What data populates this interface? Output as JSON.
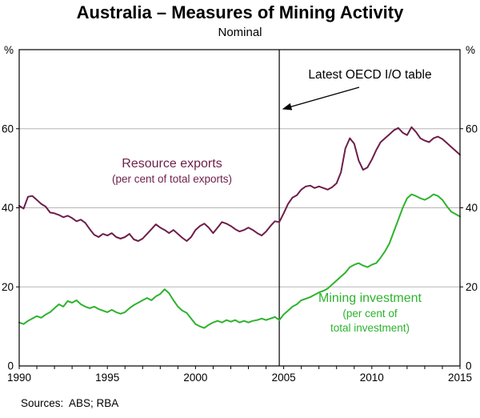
{
  "title": "Australia – Measures of Mining Activity",
  "subtitle": "Nominal",
  "annotation": {
    "label": "Latest OECD I/O table"
  },
  "series_labels": {
    "exports": {
      "line1": "Resource exports",
      "line2": "(per cent of total exports)"
    },
    "mining": {
      "line1": "Mining investment",
      "line2": "(per cent of",
      "line3": "total investment)"
    }
  },
  "sources": "Sources:  ABS; RBA",
  "colors": {
    "exports": "#6d1e49",
    "mining": "#2db32d",
    "grid": "#b5b5b5",
    "axis": "#000000"
  },
  "chart_data": {
    "type": "line",
    "title": "Australia – Measures of Mining Activity",
    "subtitle": "Nominal",
    "unit": "%",
    "xlim": [
      1990,
      2015
    ],
    "ylim": [
      0,
      80
    ],
    "y_ticks": [
      0,
      20,
      40,
      60
    ],
    "x_ticks_labeled": [
      1990,
      1995,
      2000,
      2005,
      2010,
      2015
    ],
    "grid": "horizontal",
    "vline_x": 2004.75,
    "vline_label": "Latest OECD I/O table",
    "x_start": 1990,
    "x_step": 0.25,
    "series": [
      {
        "name": "Resource exports (per cent of total exports)",
        "color_key": "exports",
        "values": [
          40.5,
          39.8,
          42.8,
          43.0,
          42.0,
          41.0,
          40.3,
          38.8,
          38.6,
          38.2,
          37.6,
          38.0,
          37.4,
          36.6,
          37.0,
          36.2,
          34.6,
          33.2,
          32.6,
          33.4,
          33.0,
          33.6,
          32.6,
          32.2,
          32.6,
          33.4,
          32.0,
          31.6,
          32.2,
          33.4,
          34.6,
          35.8,
          35.0,
          34.4,
          33.6,
          34.4,
          33.4,
          32.4,
          31.6,
          32.6,
          34.4,
          35.4,
          36.0,
          35.0,
          33.6,
          35.0,
          36.4,
          36.0,
          35.4,
          34.6,
          34.0,
          34.4,
          35.0,
          34.4,
          33.6,
          33.0,
          34.0,
          35.4,
          36.6,
          36.4,
          38.6,
          41.0,
          42.6,
          43.2,
          44.6,
          45.4,
          45.6,
          45.0,
          45.4,
          45.0,
          44.6,
          45.2,
          46.2,
          49.0,
          55.0,
          57.6,
          56.2,
          52.0,
          49.6,
          50.2,
          52.2,
          54.6,
          56.6,
          57.6,
          58.6,
          59.6,
          60.2,
          59.0,
          58.4,
          60.4,
          59.2,
          57.6,
          57.0,
          56.6,
          57.6,
          58.0,
          57.4,
          56.4,
          55.4,
          54.4,
          53.4
        ]
      },
      {
        "name": "Mining investment (per cent of total investment)",
        "color_key": "mining",
        "values": [
          11.0,
          10.6,
          11.4,
          12.0,
          12.6,
          12.2,
          13.0,
          13.6,
          14.6,
          15.6,
          15.0,
          16.4,
          16.0,
          16.6,
          15.6,
          15.0,
          14.6,
          15.0,
          14.4,
          14.0,
          13.6,
          14.2,
          13.6,
          13.2,
          13.6,
          14.6,
          15.4,
          16.0,
          16.6,
          17.2,
          16.6,
          17.6,
          18.2,
          19.4,
          18.4,
          16.6,
          15.0,
          14.0,
          13.4,
          12.0,
          10.6,
          10.0,
          9.6,
          10.4,
          11.0,
          11.4,
          11.0,
          11.6,
          11.2,
          11.6,
          11.0,
          11.4,
          11.0,
          11.4,
          11.6,
          12.0,
          11.6,
          12.0,
          12.4,
          11.6,
          13.0,
          14.0,
          15.0,
          15.6,
          16.6,
          17.0,
          17.4,
          18.0,
          18.6,
          19.0,
          19.6,
          20.6,
          21.6,
          22.6,
          23.6,
          25.0,
          25.6,
          26.0,
          25.4,
          25.0,
          25.6,
          26.0,
          27.4,
          29.0,
          31.0,
          34.0,
          37.0,
          40.0,
          42.4,
          43.4,
          43.0,
          42.4,
          42.0,
          42.6,
          43.4,
          43.0,
          42.0,
          40.4,
          39.0,
          38.4,
          37.8
        ]
      }
    ]
  }
}
